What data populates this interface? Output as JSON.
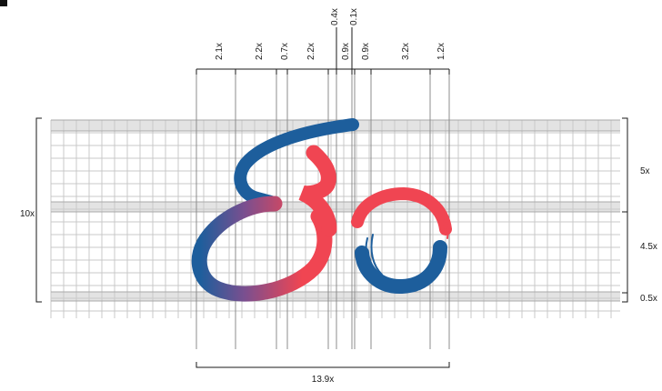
{
  "grid": {
    "band_color": "#e3e3e3",
    "line_color": "#c9c9c9",
    "guide_color": "#8c8c8c"
  },
  "top_dimensions": [
    "2.1x",
    "2.2x",
    "0.7x",
    "2.2x",
    "0.4x",
    "0.9x",
    "0.1x",
    "0.9x",
    "3.2x",
    "1.2x"
  ],
  "bottom_dimension": "13.9x",
  "left_dimension": "10x",
  "right_dimensions": [
    "5x",
    "4.5x",
    "0.5x"
  ],
  "logo": {
    "blue": "#1d5e9c",
    "red": "#f04552",
    "purple": "#7a4f8f"
  }
}
